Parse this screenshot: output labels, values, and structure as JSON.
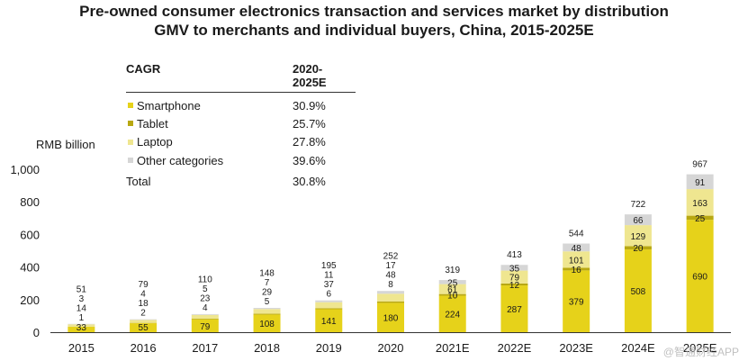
{
  "title_line1": "Pre-owned consumer electronics transaction and services market by distribution",
  "title_line2": "GMV to merchants and individual buyers, China, 2015-2025E",
  "unit_label": "RMB billion",
  "watermark": "@智通财经APP",
  "legend": {
    "header_label": "CAGR",
    "header_period": "2020-2025E",
    "items": [
      {
        "name": "Smartphone",
        "cagr": "30.9%",
        "color": "#e6d21a"
      },
      {
        "name": "Tablet",
        "cagr": "25.7%",
        "color": "#b8a812"
      },
      {
        "name": "Laptop",
        "cagr": "27.8%",
        "color": "#efe690"
      },
      {
        "name": "Other categories",
        "cagr": "39.6%",
        "color": "#d6d6d6"
      }
    ],
    "total_label": "Total",
    "total_cagr": "30.8%"
  },
  "chart_data": {
    "type": "bar",
    "stacked": true,
    "categories": [
      "2015",
      "2016",
      "2017",
      "2018",
      "2019",
      "2020",
      "2021E",
      "2022E",
      "2023E",
      "2024E",
      "2025E"
    ],
    "series": [
      {
        "name": "Smartphone",
        "values": [
          33,
          55,
          79,
          108,
          141,
          180,
          224,
          287,
          379,
          508,
          690
        ]
      },
      {
        "name": "Tablet",
        "values": [
          1,
          2,
          4,
          5,
          6,
          8,
          10,
          12,
          16,
          20,
          25
        ]
      },
      {
        "name": "Laptop",
        "values": [
          14,
          18,
          23,
          29,
          37,
          48,
          61,
          79,
          101,
          129,
          163
        ]
      },
      {
        "name": "Other categories",
        "values": [
          3,
          4,
          5,
          7,
          11,
          17,
          25,
          35,
          48,
          66,
          91
        ]
      }
    ],
    "totals": [
      51,
      79,
      110,
      148,
      195,
      252,
      319,
      413,
      544,
      722,
      967
    ],
    "yticks": [
      "0",
      "200",
      "400",
      "600",
      "800",
      "1,000"
    ],
    "ylim": [
      0,
      1000
    ],
    "ylabel": "RMB billion",
    "colors": [
      "#e6d21a",
      "#b8a812",
      "#efe690",
      "#d6d6d6"
    ]
  }
}
